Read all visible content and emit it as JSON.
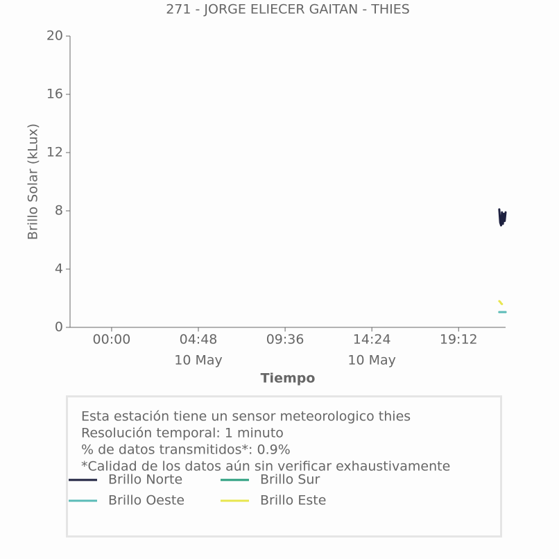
{
  "chart_data": {
    "type": "line",
    "title": "271 - JORGE ELIECER GAITAN - THIES",
    "y_label": "Brillo Solar (kLux)",
    "x_label": "Tiempo",
    "x": [
      21.45,
      21.5,
      21.55,
      21.6,
      21.65,
      21.7,
      21.75,
      21.8
    ],
    "series": [
      {
        "name": "Brillo Norte",
        "color": "#1e2140",
        "values": [
          8.1,
          7.2,
          7.0,
          7.9,
          7.1,
          7.8,
          7.3,
          7.9
        ]
      },
      {
        "name": "Brillo Sur",
        "color": "#2a9e7e",
        "values": [
          1.05,
          1.05,
          1.05,
          1.05,
          1.05,
          1.05,
          1.05,
          1.05
        ]
      },
      {
        "name": "Brillo Oeste",
        "color": "#5bbcb8",
        "values": [
          1.05,
          1.05,
          1.05,
          1.05,
          1.05,
          1.05,
          1.05,
          1.05
        ]
      },
      {
        "name": "Brillo Este",
        "color": "#e8e64f",
        "values": [
          1.8,
          1.75,
          1.65,
          1.6,
          null,
          null,
          null,
          null
        ]
      }
    ],
    "xlim": [
      -2.3,
      21.8
    ],
    "ylim": [
      0,
      20
    ],
    "xticks": [
      {
        "value": 0,
        "label": "00:00"
      },
      {
        "value": 4.8,
        "label": "04:48"
      },
      {
        "value": 9.6,
        "label": "09:36"
      },
      {
        "value": 14.4,
        "label": "14:24"
      },
      {
        "value": 19.2,
        "label": "19:12"
      }
    ],
    "xtick_dates": [
      null,
      "10 May",
      null,
      "10 May",
      null
    ],
    "yticks": [
      0,
      4,
      8,
      12,
      16,
      20
    ],
    "info_lines": [
      "Esta estación tiene un sensor meteorologico thies",
      "Resolución temporal: 1 minuto",
      "% de datos transmitidos*: 0.9%",
      "*Calidad de los datos aún sin verificar exhaustivamente"
    ]
  }
}
